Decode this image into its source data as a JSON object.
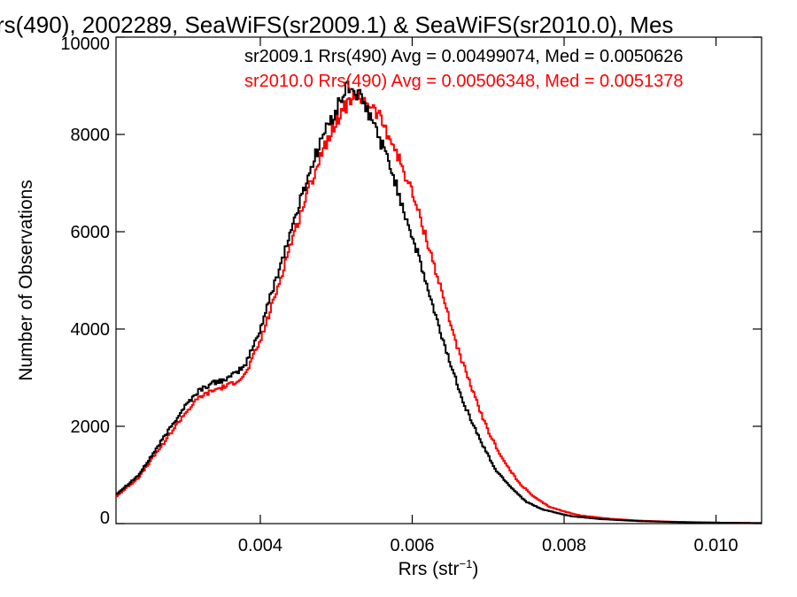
{
  "chart_data": {
    "type": "histogram-step",
    "title": "rs(490), 2002289, SeaWiFS(sr2009.1) & SeaWiFS(sr2010.0), Mes",
    "xlabel_main": "Rrs (str",
    "xlabel_sup": "−1",
    "xlabel_close": ")",
    "ylabel": "Number of Observations",
    "xlim": [
      0.0021,
      0.0106
    ],
    "ylim": [
      0,
      10000
    ],
    "x_ticks": [
      0.004,
      0.006,
      0.008,
      0.01
    ],
    "x_tick_labels": [
      "0.004",
      "0.006",
      "0.008",
      "0.010"
    ],
    "y_ticks": [
      0,
      2000,
      4000,
      6000,
      8000,
      10000
    ],
    "y_tick_labels": [
      "0",
      "2000",
      "4000",
      "6000",
      "8000",
      "10000"
    ],
    "grid": false,
    "legend_position": "top-right",
    "series": [
      {
        "name": "sr2009.1 Rrs(490) Avg = 0.00499074, Med = 0.0050626",
        "color": "#000000",
        "points": [
          [
            0.0021,
            600
          ],
          [
            0.0024,
            1000
          ],
          [
            0.0027,
            1700
          ],
          [
            0.003,
            2400
          ],
          [
            0.0032,
            2750
          ],
          [
            0.0034,
            2900
          ],
          [
            0.0036,
            3000
          ],
          [
            0.0038,
            3250
          ],
          [
            0.004,
            4000
          ],
          [
            0.0042,
            5000
          ],
          [
            0.0044,
            6000
          ],
          [
            0.0046,
            7000
          ],
          [
            0.0048,
            7900
          ],
          [
            0.005,
            8500
          ],
          [
            0.00515,
            9000
          ],
          [
            0.0053,
            8800
          ],
          [
            0.0055,
            8200
          ],
          [
            0.0057,
            7400
          ],
          [
            0.0059,
            6400
          ],
          [
            0.0061,
            5400
          ],
          [
            0.0063,
            4300
          ],
          [
            0.0065,
            3300
          ],
          [
            0.0067,
            2400
          ],
          [
            0.0069,
            1700
          ],
          [
            0.0071,
            1100
          ],
          [
            0.0073,
            750
          ],
          [
            0.0075,
            450
          ],
          [
            0.0077,
            300
          ],
          [
            0.0079,
            220
          ],
          [
            0.0081,
            150
          ],
          [
            0.0085,
            90
          ],
          [
            0.009,
            50
          ],
          [
            0.0095,
            30
          ],
          [
            0.01,
            20
          ],
          [
            0.0106,
            10
          ]
        ]
      },
      {
        "name": "sr2010.0 Rrs(490) Avg = 0.00506348, Med = 0.0051378",
        "color": "#ff0000",
        "points": [
          [
            0.0021,
            550
          ],
          [
            0.0024,
            950
          ],
          [
            0.0027,
            1600
          ],
          [
            0.003,
            2250
          ],
          [
            0.0032,
            2600
          ],
          [
            0.0034,
            2750
          ],
          [
            0.0036,
            2850
          ],
          [
            0.0038,
            3050
          ],
          [
            0.004,
            3750
          ],
          [
            0.0042,
            4700
          ],
          [
            0.0044,
            5750
          ],
          [
            0.0046,
            6700
          ],
          [
            0.0048,
            7600
          ],
          [
            0.005,
            8300
          ],
          [
            0.0052,
            8750
          ],
          [
            0.0054,
            8700
          ],
          [
            0.0056,
            8300
          ],
          [
            0.0058,
            7600
          ],
          [
            0.006,
            6800
          ],
          [
            0.0062,
            5800
          ],
          [
            0.0064,
            4700
          ],
          [
            0.0066,
            3600
          ],
          [
            0.0068,
            2700
          ],
          [
            0.007,
            1900
          ],
          [
            0.0072,
            1300
          ],
          [
            0.0074,
            850
          ],
          [
            0.0076,
            550
          ],
          [
            0.0078,
            350
          ],
          [
            0.008,
            250
          ],
          [
            0.0082,
            170
          ],
          [
            0.0086,
            100
          ],
          [
            0.009,
            60
          ],
          [
            0.0095,
            35
          ],
          [
            0.01,
            20
          ],
          [
            0.0106,
            10
          ]
        ]
      }
    ]
  }
}
